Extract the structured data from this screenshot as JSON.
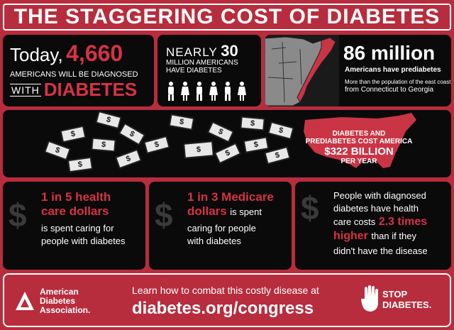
{
  "header": {
    "title": "THE STAGGERING COST OF DIABETES"
  },
  "today": {
    "prefix": "Today,",
    "number": "4,660",
    "line": "AMERICANS WILL BE DIAGNOSED",
    "with": "WITH",
    "word": "DIABETES"
  },
  "nearly": {
    "prefix": "NEARLY",
    "number": "30",
    "line1": "MILLION AMERICANS",
    "line2": "HAVE DIABETES"
  },
  "prediabetes": {
    "number": "86 million",
    "line": "Americans have prediabetes",
    "note1": "More than the population of the east coast",
    "note2": "from Connecticut to Georgia"
  },
  "cost": {
    "line1": "DIABETES AND",
    "line2": "PREDIABETES COST AMERICA",
    "amount": "$322 BILLION",
    "per": "PER YEAR"
  },
  "stat1": {
    "hl1": "1 in 5 health",
    "hl2": "care dollars",
    "rest1": "is spent caring for",
    "rest2": "people with diabetes"
  },
  "stat2": {
    "hl1": "1 in 3 Medicare",
    "hl2": "dollars",
    "rest0": "is spent",
    "rest1": "caring for people",
    "rest2": "with diabetes"
  },
  "stat3": {
    "l1": "People with diagnosed",
    "l2": "diabetes have health",
    "l3pre": "care costs",
    "hl1": "2.3 times",
    "hl2": "higher",
    "l4": "than if they",
    "l5": "didn't have the disease"
  },
  "footer": {
    "ada1": "American",
    "ada2": "Diabetes",
    "ada3": "Association.",
    "learn": "Learn how to combat this costly disease at",
    "url": "diabetes.org/congress",
    "stop1": "STOP",
    "stop2": "DIABETES."
  },
  "dollar_sign": "$",
  "colors": {
    "accent": "#d63345",
    "brand": "#b72d3d",
    "panel": "#0a0a0a"
  }
}
